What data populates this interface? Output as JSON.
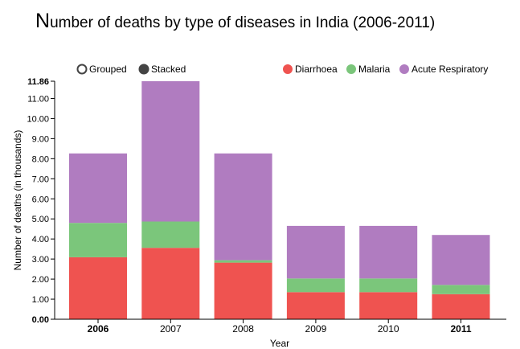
{
  "title": "Number of deaths by type of diseases in India (2006-2011)",
  "controls": [
    {
      "label": "Grouped",
      "selected": false
    },
    {
      "label": "Stacked",
      "selected": true
    }
  ],
  "chart_data": {
    "type": "bar",
    "stacked": true,
    "title": "Number of deaths by type of diseases in India (2006-2011)",
    "xlabel": "Year",
    "ylabel": "Number of deaths (in thousands)",
    "categories": [
      "2006",
      "2007",
      "2008",
      "2009",
      "2010",
      "2011"
    ],
    "bold_categories": [
      "2006",
      "2011"
    ],
    "ylim": [
      0,
      11.86
    ],
    "yticks": [
      "0.00",
      "1.00",
      "2.00",
      "3.00",
      "4.00",
      "5.00",
      "6.00",
      "7.00",
      "8.00",
      "9.00",
      "10.00",
      "11.00",
      "11.86"
    ],
    "series": [
      {
        "name": "Diarrhoea",
        "color": "#ef5350",
        "values": [
          3.09,
          3.56,
          2.82,
          1.35,
          1.35,
          1.25
        ]
      },
      {
        "name": "Malaria",
        "color": "#7bc67b",
        "values": [
          1.71,
          1.31,
          0.12,
          0.68,
          0.68,
          0.46
        ]
      },
      {
        "name": "Acute Respiratory",
        "color": "#b07cc0",
        "values": [
          3.46,
          6.99,
          5.32,
          2.62,
          2.62,
          2.49
        ]
      }
    ],
    "legend_position": "top-right",
    "grid": false
  }
}
